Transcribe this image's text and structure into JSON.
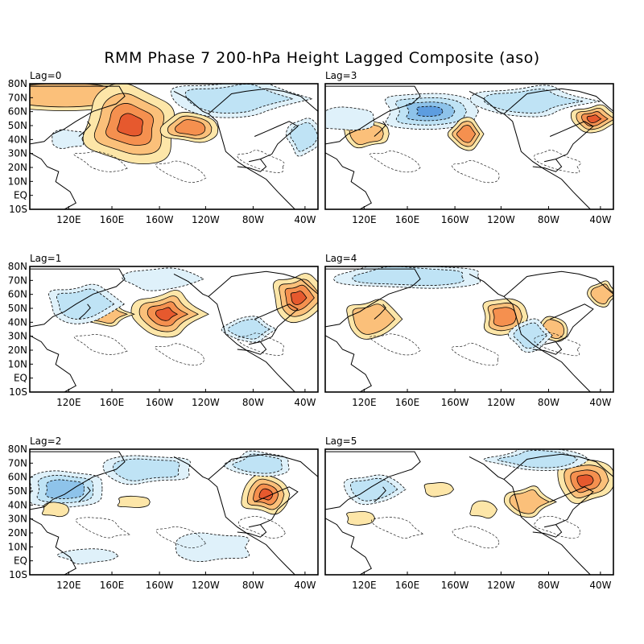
{
  "figure": {
    "title": "RMM Phase 7 200-hPa Height Lagged Composite (aso)"
  },
  "axes": {
    "lat_labels": [
      "80N",
      "70N",
      "60N",
      "50N",
      "40N",
      "30N",
      "20N",
      "10N",
      "EQ",
      "10S"
    ],
    "lon_labels": [
      "120E",
      "160E",
      "160W",
      "120W",
      "80W",
      "40W"
    ]
  },
  "panels": [
    {
      "label": "Lag=0"
    },
    {
      "label": "Lag=3"
    },
    {
      "label": "Lag=1"
    },
    {
      "label": "Lag=4"
    },
    {
      "label": "Lag=2"
    },
    {
      "label": "Lag=5"
    }
  ],
  "colors": {
    "positive_levels": [
      "#fde6a8",
      "#fbc07a",
      "#f5904f",
      "#e6592e"
    ],
    "negative_levels": [
      "#dff1fa",
      "#bfe3f5",
      "#8ec3ea",
      "#5d9de0"
    ],
    "land_outline": "#000000",
    "frame": "#000000"
  }
}
